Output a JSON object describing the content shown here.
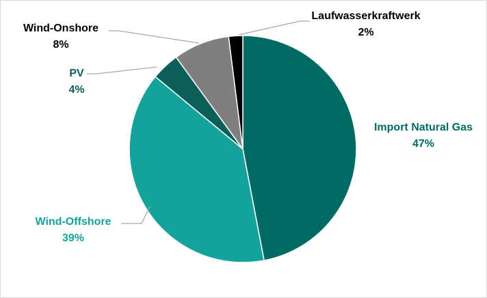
{
  "chart_data": {
    "type": "pie",
    "title": "",
    "slices": [
      {
        "label": "Import Natural Gas",
        "value": 47,
        "display": "47%",
        "color": "#006B64",
        "label_color": "#006B64"
      },
      {
        "label": "Wind-Offshore",
        "value": 39,
        "display": "39%",
        "color": "#14A39A",
        "label_color": "#14A39A"
      },
      {
        "label": "PV",
        "value": 4,
        "display": "4%",
        "color": "#0B5E5A",
        "label_color": "#0B5E5A"
      },
      {
        "label": "Wind-Onshore",
        "value": 8,
        "display": "8%",
        "color": "#7F7F7F",
        "label_color": "#000000"
      },
      {
        "label": "Laufwasserkraftwerk",
        "value": 2,
        "display": "2%",
        "color": "#000000",
        "label_color": "#000000"
      }
    ],
    "start_angle": "12 o'clock",
    "direction": "clockwise",
    "slice_border_color": "#ffffff",
    "leader_line_color": "#A6A6A6",
    "legend": "none",
    "labels": "outside with leader lines"
  }
}
